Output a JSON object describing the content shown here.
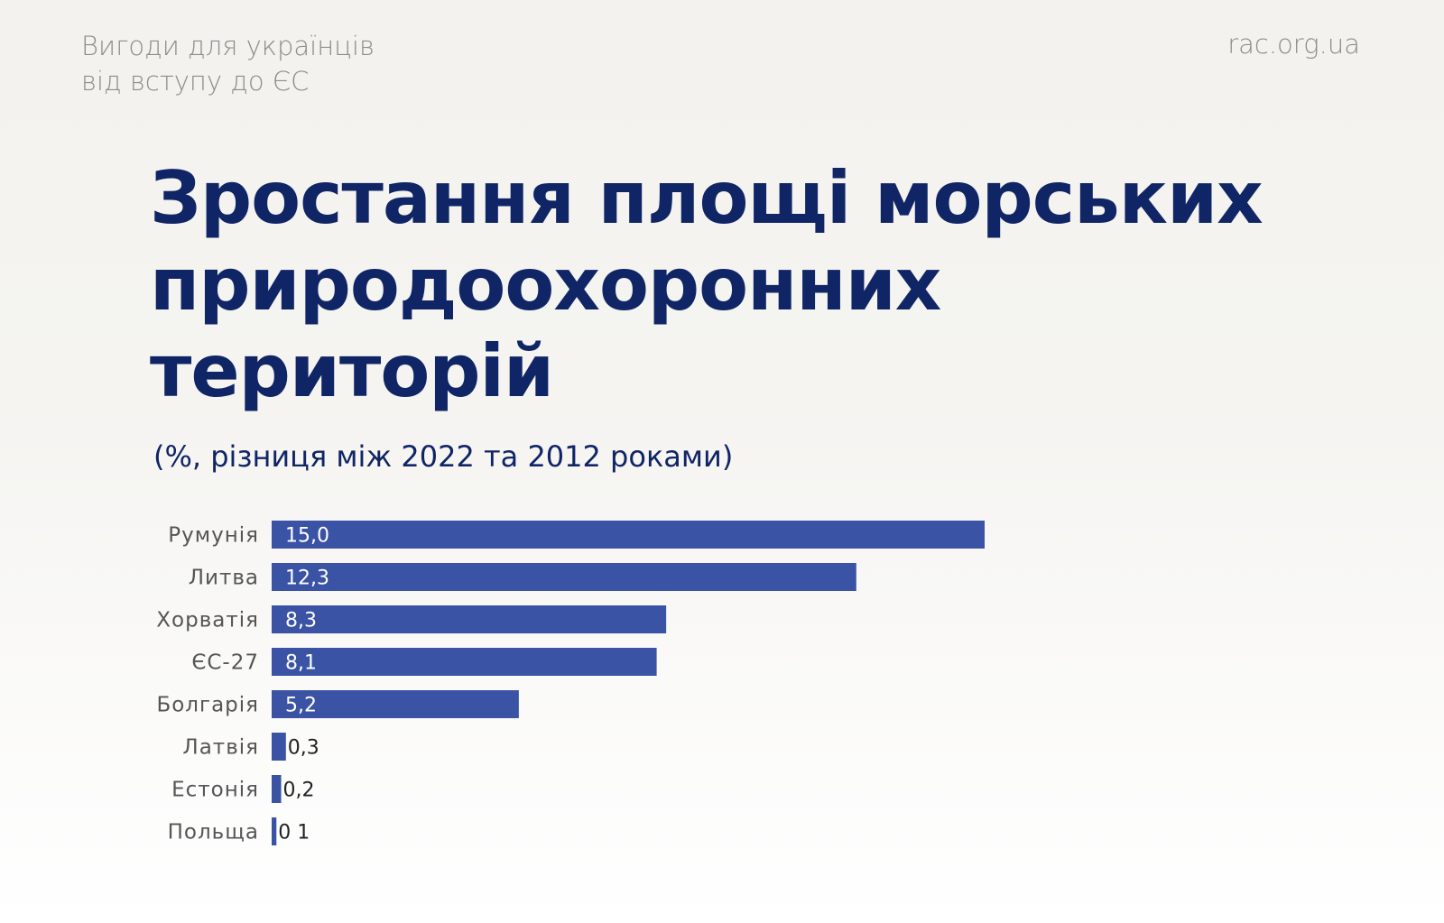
{
  "header": {
    "brand_line1": "Вигоди для українців",
    "brand_line2": "від вступу до ЄС",
    "site": "rac.org.ua"
  },
  "chart_data": {
    "type": "bar",
    "orientation": "horizontal",
    "title": "Зростання площі морських природоохоронних територій",
    "subtitle": "(%, різниця між 2022 та 2012 роками)",
    "categories": [
      "Румунія",
      "Литва",
      "Хорватія",
      "ЄС-27",
      "Болгарія",
      "Латвія",
      "Естонія",
      "Польща"
    ],
    "values": [
      15.0,
      12.3,
      8.3,
      8.1,
      5.2,
      0.3,
      0.2,
      0.1
    ],
    "data_labels": [
      "15,0",
      "12,3",
      "8,3",
      "8,1",
      "5,2",
      "0,3",
      "0,2",
      "0 1"
    ],
    "xlim": [
      0,
      15
    ],
    "grid": false,
    "bar_color": "#3a53a4"
  }
}
